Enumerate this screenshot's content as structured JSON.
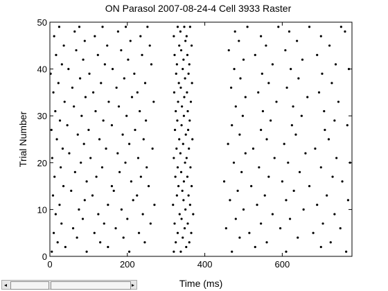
{
  "chart_data": {
    "type": "scatter",
    "title": "ON Parasol 2007-08-24-4 Cell 3933 Raster",
    "xlabel": "Time (ms)",
    "ylabel": "Trial Number",
    "xlim": [
      0,
      780
    ],
    "ylim": [
      0,
      50
    ],
    "xticks": [
      0,
      200,
      400,
      600
    ],
    "yticks": [
      0,
      10,
      20,
      30,
      40,
      50
    ],
    "x_tick_labels": [
      "0",
      "200",
      "400",
      "600"
    ],
    "y_tick_labels": [
      "0",
      "10",
      "20",
      "30",
      "40",
      "50"
    ],
    "grid": false,
    "legend": "none",
    "marker_color": "#000000",
    "series": [
      {
        "points": [
          [
            5,
            1
          ],
          [
            40,
            2
          ],
          [
            95,
            1
          ],
          [
            150,
            2
          ],
          [
            205,
            1
          ],
          [
            320,
            1
          ],
          [
            338,
            1
          ],
          [
            352,
            2
          ],
          [
            470,
            1
          ],
          [
            530,
            2
          ],
          [
            610,
            1
          ],
          [
            700,
            2
          ],
          [
            765,
            1
          ],
          [
            20,
            3
          ],
          [
            70,
            4
          ],
          [
            130,
            3
          ],
          [
            190,
            4
          ],
          [
            245,
            3
          ],
          [
            325,
            3
          ],
          [
            343,
            4
          ],
          [
            360,
            3
          ],
          [
            490,
            4
          ],
          [
            560,
            3
          ],
          [
            640,
            4
          ],
          [
            725,
            3
          ],
          [
            10,
            5
          ],
          [
            60,
            6
          ],
          [
            115,
            5
          ],
          [
            170,
            6
          ],
          [
            230,
            5
          ],
          [
            330,
            5
          ],
          [
            348,
            6
          ],
          [
            365,
            5
          ],
          [
            455,
            6
          ],
          [
            515,
            5
          ],
          [
            595,
            6
          ],
          [
            680,
            5
          ],
          [
            750,
            6
          ],
          [
            30,
            7
          ],
          [
            85,
            8
          ],
          [
            140,
            7
          ],
          [
            200,
            8
          ],
          [
            260,
            7
          ],
          [
            322,
            7
          ],
          [
            340,
            8
          ],
          [
            356,
            7
          ],
          [
            480,
            8
          ],
          [
            545,
            7
          ],
          [
            620,
            8
          ],
          [
            705,
            7
          ],
          [
            15,
            9
          ],
          [
            75,
            10
          ],
          [
            125,
            9
          ],
          [
            185,
            10
          ],
          [
            240,
            9
          ],
          [
            335,
            9
          ],
          [
            350,
            10
          ],
          [
            370,
            9
          ],
          [
            500,
            10
          ],
          [
            575,
            9
          ],
          [
            655,
            10
          ],
          [
            735,
            9
          ],
          [
            25,
            11
          ],
          [
            90,
            12
          ],
          [
            150,
            11
          ],
          [
            215,
            12
          ],
          [
            270,
            11
          ],
          [
            318,
            11
          ],
          [
            345,
            12
          ],
          [
            362,
            11
          ],
          [
            465,
            12
          ],
          [
            535,
            11
          ],
          [
            610,
            12
          ],
          [
            690,
            11
          ],
          [
            770,
            12
          ],
          [
            8,
            13
          ],
          [
            55,
            14
          ],
          [
            110,
            13
          ],
          [
            165,
            14
          ],
          [
            225,
            13
          ],
          [
            328,
            13
          ],
          [
            342,
            14
          ],
          [
            358,
            13
          ],
          [
            485,
            14
          ],
          [
            555,
            13
          ],
          [
            630,
            14
          ],
          [
            715,
            13
          ],
          [
            35,
            15
          ],
          [
            95,
            16
          ],
          [
            160,
            15
          ],
          [
            210,
            16
          ],
          [
            255,
            15
          ],
          [
            332,
            15
          ],
          [
            346,
            16
          ],
          [
            366,
            15
          ],
          [
            450,
            16
          ],
          [
            520,
            15
          ],
          [
            600,
            16
          ],
          [
            670,
            15
          ],
          [
            755,
            16
          ],
          [
            12,
            17
          ],
          [
            65,
            18
          ],
          [
            120,
            17
          ],
          [
            180,
            18
          ],
          [
            235,
            17
          ],
          [
            324,
            17
          ],
          [
            339,
            18
          ],
          [
            355,
            17
          ],
          [
            495,
            18
          ],
          [
            565,
            17
          ],
          [
            645,
            18
          ],
          [
            730,
            17
          ],
          [
            28,
            19
          ],
          [
            80,
            20
          ],
          [
            135,
            19
          ],
          [
            195,
            20
          ],
          [
            250,
            19
          ],
          [
            330,
            19
          ],
          [
            349,
            20
          ],
          [
            363,
            19
          ],
          [
            475,
            20
          ],
          [
            540,
            19
          ],
          [
            615,
            20
          ],
          [
            700,
            19
          ],
          [
            775,
            20
          ],
          [
            6,
            21
          ],
          [
            50,
            22
          ],
          [
            105,
            21
          ],
          [
            175,
            22
          ],
          [
            228,
            21
          ],
          [
            320,
            21
          ],
          [
            337,
            22
          ],
          [
            353,
            21
          ],
          [
            505,
            22
          ],
          [
            580,
            21
          ],
          [
            660,
            22
          ],
          [
            740,
            21
          ],
          [
            33,
            23
          ],
          [
            88,
            24
          ],
          [
            145,
            23
          ],
          [
            205,
            24
          ],
          [
            265,
            23
          ],
          [
            327,
            23
          ],
          [
            344,
            24
          ],
          [
            359,
            23
          ],
          [
            460,
            24
          ],
          [
            525,
            23
          ],
          [
            605,
            24
          ],
          [
            685,
            23
          ],
          [
            18,
            25
          ],
          [
            72,
            26
          ],
          [
            128,
            25
          ],
          [
            188,
            26
          ],
          [
            242,
            25
          ],
          [
            334,
            25
          ],
          [
            351,
            26
          ],
          [
            368,
            25
          ],
          [
            490,
            26
          ],
          [
            560,
            25
          ],
          [
            635,
            26
          ],
          [
            720,
            25
          ],
          [
            4,
            27
          ],
          [
            45,
            28
          ],
          [
            100,
            27
          ],
          [
            160,
            28
          ],
          [
            220,
            27
          ],
          [
            323,
            27
          ],
          [
            340,
            28
          ],
          [
            357,
            27
          ],
          [
            470,
            28
          ],
          [
            545,
            27
          ],
          [
            625,
            28
          ],
          [
            710,
            27
          ],
          [
            768,
            28
          ],
          [
            26,
            29
          ],
          [
            82,
            30
          ],
          [
            138,
            29
          ],
          [
            198,
            30
          ],
          [
            248,
            29
          ],
          [
            329,
            29
          ],
          [
            346,
            30
          ],
          [
            361,
            29
          ],
          [
            498,
            30
          ],
          [
            570,
            29
          ],
          [
            650,
            30
          ],
          [
            735,
            29
          ],
          [
            14,
            31
          ],
          [
            62,
            32
          ],
          [
            118,
            31
          ],
          [
            178,
            32
          ],
          [
            232,
            31
          ],
          [
            325,
            31
          ],
          [
            341,
            32
          ],
          [
            356,
            31
          ],
          [
            480,
            32
          ],
          [
            550,
            31
          ],
          [
            628,
            32
          ],
          [
            708,
            31
          ],
          [
            38,
            33
          ],
          [
            92,
            34
          ],
          [
            152,
            33
          ],
          [
            212,
            34
          ],
          [
            268,
            33
          ],
          [
            331,
            33
          ],
          [
            347,
            34
          ],
          [
            364,
            33
          ],
          [
            505,
            34
          ],
          [
            585,
            33
          ],
          [
            665,
            34
          ],
          [
            745,
            33
          ],
          [
            9,
            35
          ],
          [
            58,
            36
          ],
          [
            112,
            35
          ],
          [
            172,
            36
          ],
          [
            226,
            35
          ],
          [
            321,
            35
          ],
          [
            338,
            36
          ],
          [
            354,
            35
          ],
          [
            468,
            36
          ],
          [
            538,
            35
          ],
          [
            612,
            36
          ],
          [
            695,
            35
          ],
          [
            22,
            37
          ],
          [
            78,
            38
          ],
          [
            132,
            37
          ],
          [
            192,
            38
          ],
          [
            246,
            37
          ],
          [
            333,
            37
          ],
          [
            349,
            38
          ],
          [
            367,
            37
          ],
          [
            492,
            38
          ],
          [
            565,
            37
          ],
          [
            642,
            38
          ],
          [
            728,
            37
          ],
          [
            2,
            39
          ],
          [
            48,
            40
          ],
          [
            102,
            39
          ],
          [
            162,
            40
          ],
          [
            218,
            39
          ],
          [
            326,
            39
          ],
          [
            343,
            40
          ],
          [
            358,
            39
          ],
          [
            476,
            40
          ],
          [
            548,
            39
          ],
          [
            622,
            40
          ],
          [
            703,
            39
          ],
          [
            772,
            40
          ],
          [
            31,
            41
          ],
          [
            86,
            42
          ],
          [
            142,
            41
          ],
          [
            202,
            42
          ],
          [
            262,
            41
          ],
          [
            328,
            41
          ],
          [
            345,
            42
          ],
          [
            360,
            41
          ],
          [
            500,
            42
          ],
          [
            575,
            41
          ],
          [
            652,
            42
          ],
          [
            738,
            41
          ],
          [
            16,
            43
          ],
          [
            68,
            44
          ],
          [
            124,
            43
          ],
          [
            184,
            44
          ],
          [
            238,
            43
          ],
          [
            322,
            43
          ],
          [
            339,
            44
          ],
          [
            355,
            43
          ],
          [
            462,
            44
          ],
          [
            530,
            43
          ],
          [
            608,
            44
          ],
          [
            690,
            43
          ],
          [
            36,
            45
          ],
          [
            90,
            46
          ],
          [
            148,
            45
          ],
          [
            208,
            46
          ],
          [
            258,
            45
          ],
          [
            334,
            45
          ],
          [
            350,
            46
          ],
          [
            366,
            45
          ],
          [
            488,
            46
          ],
          [
            558,
            45
          ],
          [
            638,
            46
          ],
          [
            722,
            45
          ],
          [
            11,
            47
          ],
          [
            64,
            48
          ],
          [
            116,
            47
          ],
          [
            176,
            48
          ],
          [
            234,
            47
          ],
          [
            320,
            47
          ],
          [
            337,
            48
          ],
          [
            353,
            47
          ],
          [
            478,
            48
          ],
          [
            545,
            47
          ],
          [
            618,
            48
          ],
          [
            700,
            47
          ],
          [
            762,
            48
          ],
          [
            24,
            49
          ],
          [
            76,
            49
          ],
          [
            136,
            49
          ],
          [
            196,
            49
          ],
          [
            252,
            49
          ],
          [
            330,
            49
          ],
          [
            347,
            49
          ],
          [
            362,
            49
          ],
          [
            510,
            49
          ],
          [
            590,
            49
          ],
          [
            670,
            49
          ],
          [
            752,
            49
          ]
        ]
      }
    ]
  },
  "scrollbar": {
    "left_arrow": "◂",
    "right_arrow": "▸"
  }
}
